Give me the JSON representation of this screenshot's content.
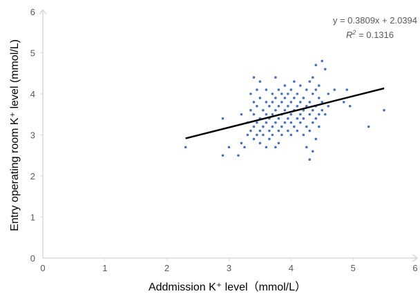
{
  "chart_data": {
    "type": "scatter",
    "xlabel": "Addmission K⁺ level（mmol/L）",
    "ylabel": "Entry operating room K⁺ level (mmol/L)",
    "xlim": [
      0,
      6
    ],
    "ylim": [
      0,
      6
    ],
    "x_ticks": [
      "0",
      "1",
      "2",
      "3",
      "4",
      "5",
      "6"
    ],
    "y_ticks": [
      "0",
      "1",
      "2",
      "3",
      "4",
      "5",
      "6"
    ],
    "grid": false,
    "legend": "none",
    "colors": {
      "points": "#4472c4",
      "trendline": "#000000",
      "axis": "#d9d9d9"
    },
    "trendline": {
      "slope": 0.3809,
      "intercept": 2.0394,
      "x_range": [
        2.3,
        5.5
      ],
      "equation": "y = 0.3809x + 2.0394",
      "r2_prefix": "R",
      "r2_sup": "2",
      "r2_value": " = 0.1316"
    },
    "points": [
      [
        2.3,
        2.7
      ],
      [
        2.9,
        2.5
      ],
      [
        2.9,
        3.4
      ],
      [
        3.0,
        2.7
      ],
      [
        3.15,
        2.5
      ],
      [
        3.2,
        2.8
      ],
      [
        3.2,
        3.5
      ],
      [
        3.25,
        2.7
      ],
      [
        3.3,
        3.0
      ],
      [
        3.3,
        3.3
      ],
      [
        3.35,
        3.1
      ],
      [
        3.35,
        3.6
      ],
      [
        3.35,
        4.0
      ],
      [
        3.4,
        2.9
      ],
      [
        3.4,
        3.2
      ],
      [
        3.4,
        3.5
      ],
      [
        3.4,
        3.8
      ],
      [
        3.4,
        4.4
      ],
      [
        3.45,
        3.0
      ],
      [
        3.45,
        3.3
      ],
      [
        3.45,
        3.7
      ],
      [
        3.45,
        4.1
      ],
      [
        3.5,
        2.8
      ],
      [
        3.5,
        3.1
      ],
      [
        3.5,
        3.4
      ],
      [
        3.5,
        3.9
      ],
      [
        3.5,
        4.3
      ],
      [
        3.55,
        3.0
      ],
      [
        3.55,
        3.2
      ],
      [
        3.55,
        3.6
      ],
      [
        3.6,
        2.7
      ],
      [
        3.6,
        3.3
      ],
      [
        3.6,
        3.5
      ],
      [
        3.6,
        3.8
      ],
      [
        3.6,
        4.1
      ],
      [
        3.65,
        2.9
      ],
      [
        3.65,
        3.1
      ],
      [
        3.65,
        3.4
      ],
      [
        3.65,
        3.7
      ],
      [
        3.7,
        3.0
      ],
      [
        3.7,
        3.2
      ],
      [
        3.7,
        3.5
      ],
      [
        3.7,
        3.8
      ],
      [
        3.7,
        4.0
      ],
      [
        3.75,
        2.7
      ],
      [
        3.75,
        3.3
      ],
      [
        3.75,
        3.6
      ],
      [
        3.75,
        3.9
      ],
      [
        3.75,
        4.4
      ],
      [
        3.8,
        2.8
      ],
      [
        3.8,
        3.1
      ],
      [
        3.8,
        3.4
      ],
      [
        3.8,
        3.7
      ],
      [
        3.8,
        4.1
      ],
      [
        3.85,
        3.0
      ],
      [
        3.85,
        3.2
      ],
      [
        3.85,
        3.5
      ],
      [
        3.85,
        3.8
      ],
      [
        3.85,
        4.0
      ],
      [
        3.9,
        3.3
      ],
      [
        3.9,
        3.6
      ],
      [
        3.9,
        3.9
      ],
      [
        3.9,
        4.2
      ],
      [
        3.95,
        3.1
      ],
      [
        3.95,
        3.4
      ],
      [
        3.95,
        3.7
      ],
      [
        3.95,
        4.0
      ],
      [
        4.0,
        3.0
      ],
      [
        4.0,
        3.3
      ],
      [
        4.0,
        3.5
      ],
      [
        4.0,
        3.8
      ],
      [
        4.0,
        4.1
      ],
      [
        4.05,
        3.2
      ],
      [
        4.05,
        3.6
      ],
      [
        4.05,
        3.9
      ],
      [
        4.05,
        4.3
      ],
      [
        4.1,
        3.1
      ],
      [
        4.1,
        3.4
      ],
      [
        4.1,
        3.7
      ],
      [
        4.1,
        4.0
      ],
      [
        4.15,
        3.3
      ],
      [
        4.15,
        3.5
      ],
      [
        4.15,
        3.8
      ],
      [
        4.15,
        4.2
      ],
      [
        4.2,
        3.0
      ],
      [
        4.2,
        3.4
      ],
      [
        4.2,
        3.6
      ],
      [
        4.2,
        3.9
      ],
      [
        4.25,
        2.7
      ],
      [
        4.25,
        3.2
      ],
      [
        4.25,
        3.7
      ],
      [
        4.25,
        4.1
      ],
      [
        4.3,
        2.4
      ],
      [
        4.3,
        3.1
      ],
      [
        4.3,
        3.5
      ],
      [
        4.3,
        3.8
      ],
      [
        4.3,
        4.3
      ],
      [
        4.35,
        2.6
      ],
      [
        4.35,
        3.3
      ],
      [
        4.35,
        3.6
      ],
      [
        4.35,
        4.0
      ],
      [
        4.35,
        4.4
      ],
      [
        4.4,
        2.9
      ],
      [
        4.4,
        3.4
      ],
      [
        4.4,
        3.7
      ],
      [
        4.4,
        4.1
      ],
      [
        4.4,
        4.7
      ],
      [
        4.45,
        3.2
      ],
      [
        4.45,
        3.5
      ],
      [
        4.45,
        3.9
      ],
      [
        4.45,
        4.2
      ],
      [
        4.5,
        3.6
      ],
      [
        4.5,
        3.8
      ],
      [
        4.5,
        4.8
      ],
      [
        4.55,
        3.5
      ],
      [
        4.55,
        4.6
      ],
      [
        4.6,
        3.7
      ],
      [
        4.6,
        4.0
      ],
      [
        4.7,
        4.1
      ],
      [
        4.85,
        3.8
      ],
      [
        4.9,
        4.1
      ],
      [
        4.95,
        3.7
      ],
      [
        5.25,
        3.2
      ],
      [
        5.5,
        3.6
      ]
    ]
  }
}
